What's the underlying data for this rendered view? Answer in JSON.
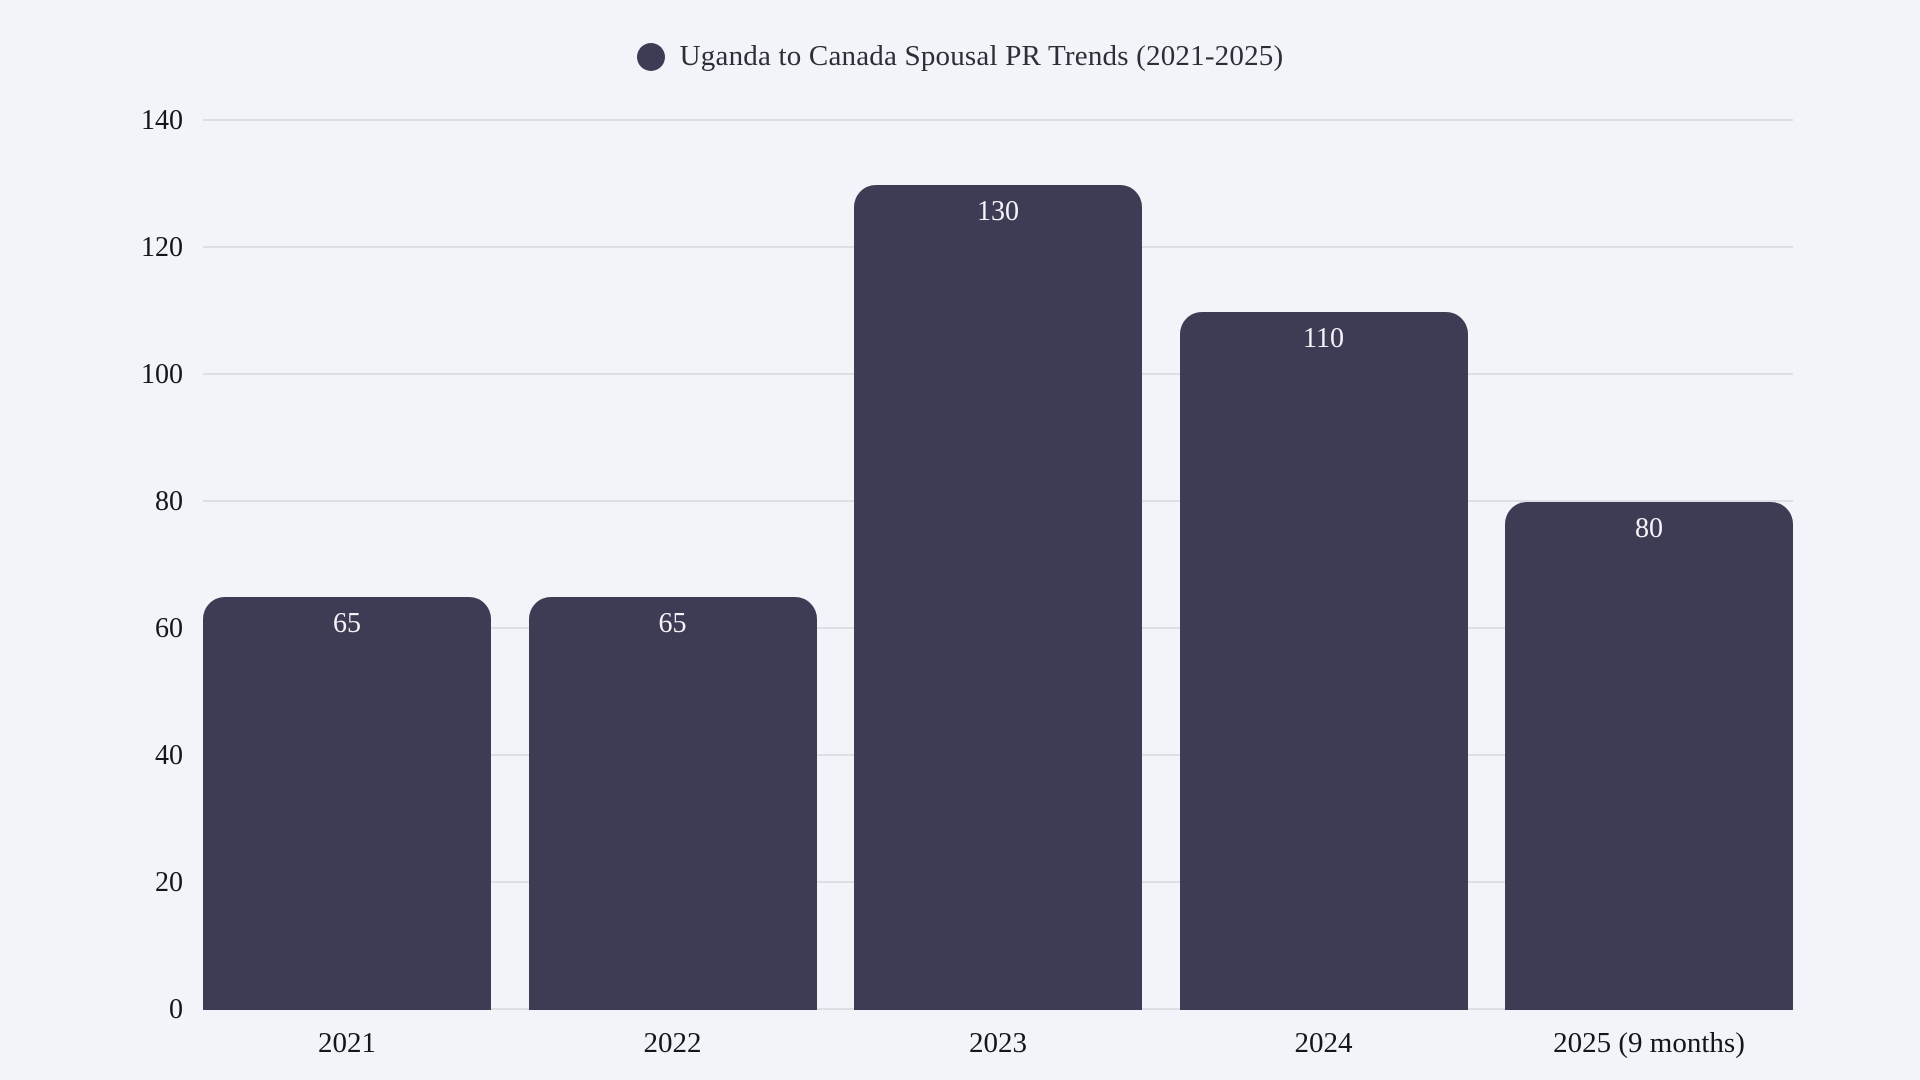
{
  "page": {
    "background_color": "#f1f5f9"
  },
  "legend": {
    "label": "Uganda to Canada Spousal PR Trends (2021-2025)",
    "marker_color": "#3e3b54"
  },
  "chart_data": {
    "type": "bar",
    "title": "Uganda to Canada Spousal PR Trends (2021-2025)",
    "categories": [
      "2021",
      "2022",
      "2023",
      "2024",
      "2025 (9 months)"
    ],
    "values": [
      65,
      65,
      130,
      110,
      80
    ],
    "xlabel": "",
    "ylabel": "",
    "ylim": [
      0,
      140
    ],
    "yticks": [
      0,
      20,
      40,
      60,
      80,
      100,
      120,
      140
    ],
    "grid": true,
    "legend_position": "top",
    "bar_color": "#3e3b54",
    "value_label_color": "#f4f3f7",
    "axis_label_color": "#15151c",
    "gridline_color": "#dcdfe4",
    "background_color": "#f1f5f9"
  }
}
